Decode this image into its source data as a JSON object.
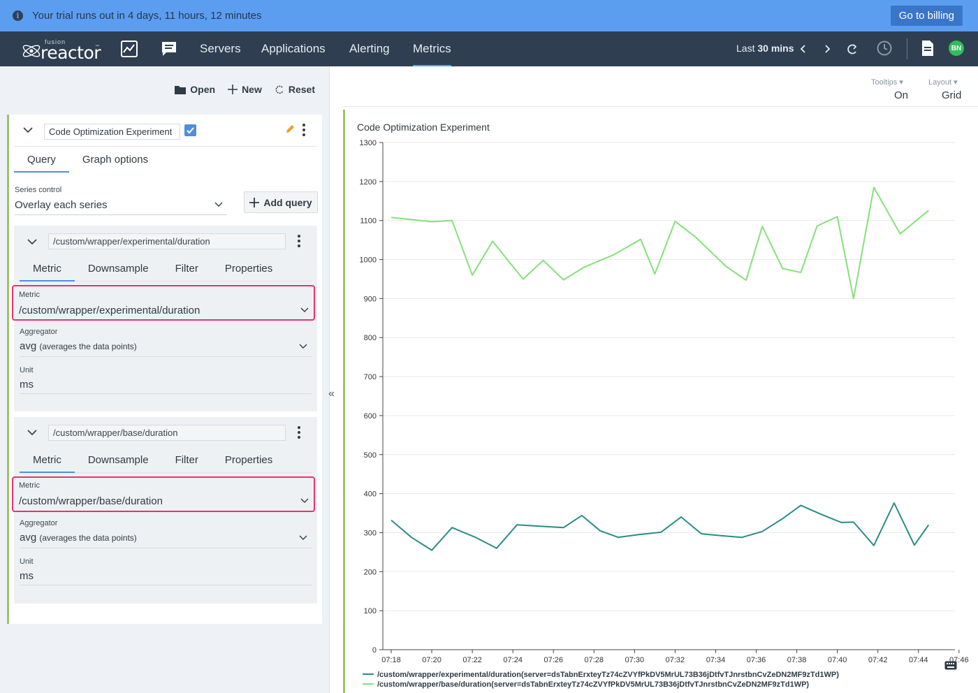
{
  "banner": {
    "message": "Your trial runs out in 4 days, 11 hours, 12 minutes",
    "billing_label": "Go to billing",
    "info_icon": "i"
  },
  "nav": {
    "logo_top": "fusion",
    "logo_main": "reactor",
    "logo_tm": "™",
    "links": [
      "Servers",
      "Applications",
      "Alerting",
      "Metrics"
    ],
    "time_prefix": "Last",
    "time_value": "30 mins",
    "avatar": "BN"
  },
  "toolbar": {
    "open": "Open",
    "new": "New",
    "reset": "Reset"
  },
  "card": {
    "title": "Code Optimization Experiment",
    "tabs": [
      "Query",
      "Graph options"
    ],
    "series_label": "Series control",
    "series_value": "Overlay each series",
    "add_query": "Add query"
  },
  "queries": [
    {
      "name": "/custom/wrapper/experimental/duration",
      "tabs": [
        "Metric",
        "Downsample",
        "Filter",
        "Properties"
      ],
      "metric_label": "Metric",
      "metric_value": "/custom/wrapper/experimental/duration",
      "aggregator_label": "Aggregator",
      "aggregator_value": "avg",
      "aggregator_note": "(averages the data points)",
      "unit_label": "Unit",
      "unit_value": "ms"
    },
    {
      "name": "/custom/wrapper/base/duration",
      "tabs": [
        "Metric",
        "Downsample",
        "Filter",
        "Properties"
      ],
      "metric_label": "Metric",
      "metric_value": "/custom/wrapper/base/duration",
      "aggregator_label": "Aggregator",
      "aggregator_value": "avg",
      "aggregator_note": "(averages the data points)",
      "unit_label": "Unit",
      "unit_value": "ms"
    }
  ],
  "collapse_label": "«",
  "chart_options": {
    "tooltips_label": "Tooltips",
    "tooltips_value": "On",
    "layout_label": "Layout",
    "layout_value": "Grid"
  },
  "chart_data": {
    "type": "line",
    "title": "Code Optimization Experiment",
    "xlabel": "",
    "ylabel": "",
    "ylim": [
      0,
      1300
    ],
    "yticks": [
      0,
      100,
      200,
      300,
      400,
      500,
      600,
      700,
      800,
      900,
      1000,
      1100,
      1200,
      1300
    ],
    "xticks": [
      "07:18",
      "07:20",
      "07:22",
      "07:24",
      "07:26",
      "07:28",
      "07:30",
      "07:32",
      "07:34",
      "07:36",
      "07:38",
      "07:40",
      "07:42",
      "07:44",
      "07:46"
    ],
    "x_minutes": [
      0,
      1,
      2,
      2.9,
      3.7,
      4.5,
      5.3,
      6.1,
      6.7,
      7.3,
      8.2,
      9.2,
      10.1,
      10.5,
      11.1,
      11.8,
      12.6,
      13.1,
      13.7,
      14.5,
      15.3,
      16.2,
      16.7,
      17.4,
      18.2,
      19.1,
      20.0,
      20.5,
      21.1,
      22.0,
      22.8,
      23.6,
      24.6,
      25.4,
      26.1,
      26.7
    ],
    "grid": true,
    "legend_position": "bottom",
    "series": [
      {
        "name": "/custom/wrapper/experimental/duration(server=dsTabnErxteyTz74cZVYfPkDV5MrUL73B36jDtfvTJnrstbnCvZeDN2MF9zTd1WP)",
        "color": "#2a8c86",
        "x": [
          0,
          1,
          2,
          3,
          4.2,
          5.2,
          6.2,
          7.5,
          8.5,
          9.4,
          10.3,
          11.2,
          12.2,
          13.3,
          14.3,
          15.3,
          16.3,
          17.3,
          18.3,
          19.3,
          20.2,
          21.2,
          22.2,
          22.8,
          23.8,
          24.8,
          25.8,
          26.5
        ],
        "values": [
          332,
          288,
          255,
          313,
          287,
          260,
          320,
          316,
          313,
          344,
          305,
          288,
          295,
          301,
          340,
          297,
          292,
          288,
          303,
          336,
          370,
          347,
          326,
          327,
          267,
          376,
          268,
          320
        ]
      },
      {
        "name": "/custom/wrapper/base/duration(server=dsTabnErxteyTz74cZVYfPkDV5MrUL73B36jDtfvTJnrstbnCvZeDN2MF9zTd1WP)",
        "color": "#86e07a",
        "x": [
          0,
          2,
          3,
          4,
          5,
          6.5,
          7.5,
          8.5,
          9.5,
          11,
          12.3,
          13,
          14,
          15,
          16.5,
          17.5,
          18.3,
          19.3,
          20.2,
          21,
          22,
          22.8,
          23.8,
          25.1,
          26.5
        ],
        "values": [
          1108,
          1097,
          1100,
          960,
          1047,
          950,
          998,
          948,
          980,
          1013,
          1052,
          963,
          1098,
          1058,
          983,
          947,
          1085,
          977,
          967,
          1086,
          1110,
          900,
          1185,
          1066,
          1126
        ]
      }
    ]
  }
}
